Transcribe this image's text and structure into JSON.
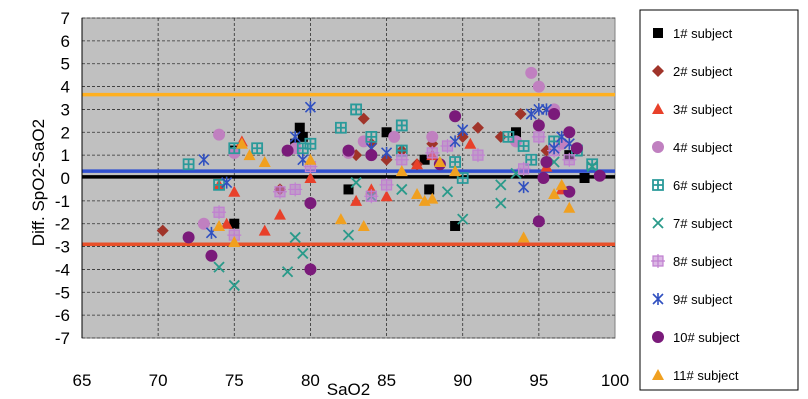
{
  "chart_data": {
    "type": "scatter",
    "title": "",
    "xlabel": "SaO2",
    "ylabel": "Diff. SpO2-SaO2",
    "xlim": [
      65,
      100
    ],
    "ylim": [
      -7,
      7
    ],
    "xticks": [
      65,
      70,
      75,
      80,
      85,
      90,
      95,
      100
    ],
    "yticks": [
      7,
      6,
      5,
      4,
      3,
      2,
      1,
      0,
      -1,
      -2,
      -3,
      -4,
      -5,
      -6,
      -7
    ],
    "grid": true,
    "legend": "right",
    "reference_lines": [
      {
        "y": 3.65,
        "color": "#ffb020"
      },
      {
        "y": 0.3,
        "color": "#3050d0"
      },
      {
        "y": 0.05,
        "color": "#000000"
      },
      {
        "y": -2.9,
        "color": "#e8502a"
      }
    ],
    "series": [
      {
        "name": "1# subject",
        "marker": "square",
        "color": "#000000",
        "points": [
          [
            75,
            1.2
          ],
          [
            75,
            -2
          ],
          [
            79,
            1.5
          ],
          [
            79.3,
            2.2
          ],
          [
            79.5,
            1.8
          ],
          [
            82.5,
            -0.5
          ],
          [
            85,
            2
          ],
          [
            87.5,
            0.8
          ],
          [
            87.8,
            -0.5
          ],
          [
            89.5,
            -2.1
          ],
          [
            93.5,
            2
          ],
          [
            97,
            1
          ],
          [
            98,
            0
          ]
        ]
      },
      {
        "name": "2# subject",
        "marker": "diamond",
        "color": "#a0342a",
        "points": [
          [
            70.3,
            -2.3
          ],
          [
            78,
            -0.5
          ],
          [
            83,
            1
          ],
          [
            83.5,
            2.6
          ],
          [
            84,
            1.5
          ],
          [
            85,
            0.8
          ],
          [
            86,
            1.2
          ],
          [
            87,
            0.6
          ],
          [
            88,
            1.5
          ],
          [
            90,
            1.8
          ],
          [
            91,
            2.2
          ],
          [
            92.5,
            1.8
          ],
          [
            93.8,
            2.8
          ],
          [
            95.5,
            1.2
          ]
        ]
      },
      {
        "name": "3# subject",
        "marker": "triangle",
        "color": "#e8402a",
        "points": [
          [
            74,
            -0.3
          ],
          [
            74.5,
            -2
          ],
          [
            75,
            -0.6
          ],
          [
            75.5,
            1.6
          ],
          [
            77,
            -2.3
          ],
          [
            78,
            -1.6
          ],
          [
            80,
            0
          ],
          [
            83,
            -1
          ],
          [
            84,
            -0.5
          ],
          [
            85,
            -0.8
          ],
          [
            87,
            0.6
          ],
          [
            88,
            1
          ],
          [
            90.5,
            1.5
          ],
          [
            95.5,
            0.5
          ],
          [
            96.5,
            -0.5
          ]
        ]
      },
      {
        "name": "4# subject",
        "marker": "circle",
        "color": "#c080c0",
        "points": [
          [
            73,
            -2
          ],
          [
            74,
            1.9
          ],
          [
            75,
            1.1
          ],
          [
            79,
            1.3
          ],
          [
            82.5,
            1.1
          ],
          [
            83.5,
            1.6
          ],
          [
            85.5,
            1.8
          ],
          [
            88,
            1.8
          ],
          [
            93.5,
            1.6
          ],
          [
            94.5,
            4.6
          ],
          [
            95,
            4
          ],
          [
            96,
            3
          ],
          [
            96.5,
            1.5
          ]
        ]
      },
      {
        "name": "6# subject",
        "marker": "boxplus",
        "color": "#2a9a9a",
        "points": [
          [
            72,
            0.6
          ],
          [
            74,
            -0.3
          ],
          [
            75,
            1.3
          ],
          [
            76.5,
            1.3
          ],
          [
            79.5,
            1.3
          ],
          [
            80,
            1.5
          ],
          [
            82,
            2.2
          ],
          [
            83,
            3
          ],
          [
            84,
            1.8
          ],
          [
            86,
            2.3
          ],
          [
            86,
            1.2
          ],
          [
            89.5,
            0.7
          ],
          [
            90,
            0
          ],
          [
            93,
            1.8
          ],
          [
            94,
            1.4
          ],
          [
            94.5,
            0.8
          ],
          [
            96,
            1.6
          ],
          [
            97.5,
            1.2
          ],
          [
            98.5,
            0.6
          ]
        ]
      },
      {
        "name": "7# subject",
        "marker": "x",
        "color": "#2a9a8a",
        "points": [
          [
            74,
            -3.9
          ],
          [
            75,
            -4.7
          ],
          [
            78.5,
            -4.1
          ],
          [
            79,
            -2.6
          ],
          [
            79.5,
            -3.3
          ],
          [
            82.5,
            -2.5
          ],
          [
            83,
            -0.2
          ],
          [
            84,
            -0.8
          ],
          [
            86,
            -0.5
          ],
          [
            89,
            -0.6
          ],
          [
            90,
            -1.8
          ],
          [
            92.5,
            -1.1
          ],
          [
            92.5,
            -0.3
          ],
          [
            93.5,
            0.2
          ],
          [
            96,
            0.7
          ],
          [
            98.5,
            0.5
          ]
        ]
      },
      {
        "name": "8# subject",
        "marker": "squareplus",
        "color": "#c080d0",
        "points": [
          [
            74,
            -1.5
          ],
          [
            75,
            -2.5
          ],
          [
            78,
            -0.6
          ],
          [
            79,
            -0.5
          ],
          [
            80,
            0.5
          ],
          [
            84,
            -0.8
          ],
          [
            85,
            -0.3
          ],
          [
            86,
            0.8
          ],
          [
            88,
            1.1
          ],
          [
            89,
            1.4
          ],
          [
            91,
            1
          ],
          [
            94,
            0.4
          ],
          [
            95,
            1.8
          ],
          [
            96,
            1.2
          ],
          [
            97,
            0.8
          ]
        ]
      },
      {
        "name": "9# subject",
        "marker": "star",
        "color": "#3050c0",
        "points": [
          [
            73,
            0.8
          ],
          [
            73.5,
            -2.4
          ],
          [
            74.5,
            -0.2
          ],
          [
            79,
            1.8
          ],
          [
            79.5,
            0.8
          ],
          [
            80,
            3.1
          ],
          [
            84,
            1.3
          ],
          [
            85,
            1.1
          ],
          [
            89.5,
            1.6
          ],
          [
            90,
            2.1
          ],
          [
            94,
            -0.4
          ],
          [
            94.5,
            2.8
          ],
          [
            95,
            3
          ],
          [
            95.5,
            3
          ],
          [
            96,
            1.3
          ],
          [
            96.5,
            1.8
          ],
          [
            97,
            1.5
          ]
        ]
      },
      {
        "name": "10# subject",
        "marker": "circle",
        "color": "#7a1a7a",
        "points": [
          [
            72,
            -2.6
          ],
          [
            73.5,
            -3.4
          ],
          [
            78.5,
            1.2
          ],
          [
            80,
            -1.1
          ],
          [
            80,
            -4
          ],
          [
            82.5,
            1.2
          ],
          [
            84,
            1
          ],
          [
            88.5,
            0.6
          ],
          [
            89.5,
            2.7
          ],
          [
            95,
            2.3
          ],
          [
            95,
            -1.9
          ],
          [
            95.3,
            0
          ],
          [
            95.5,
            0.7
          ],
          [
            96,
            2.8
          ],
          [
            97,
            2
          ],
          [
            97,
            -0.6
          ],
          [
            97.5,
            1.3
          ],
          [
            99,
            0.1
          ]
        ]
      },
      {
        "name": "11# subject",
        "marker": "triangle",
        "color": "#f0a020",
        "points": [
          [
            74,
            -2.1
          ],
          [
            75,
            -2.8
          ],
          [
            75.5,
            1.5
          ],
          [
            76,
            1
          ],
          [
            77,
            0.7
          ],
          [
            80,
            0.8
          ],
          [
            82,
            -1.8
          ],
          [
            83.5,
            -2.1
          ],
          [
            86,
            0.3
          ],
          [
            87,
            -0.7
          ],
          [
            87.5,
            -1
          ],
          [
            88,
            -0.9
          ],
          [
            88.5,
            0.7
          ],
          [
            89.5,
            0.3
          ],
          [
            94,
            -2.6
          ],
          [
            96,
            -0.7
          ],
          [
            96.5,
            -0.3
          ],
          [
            97,
            -1.3
          ]
        ]
      }
    ]
  }
}
